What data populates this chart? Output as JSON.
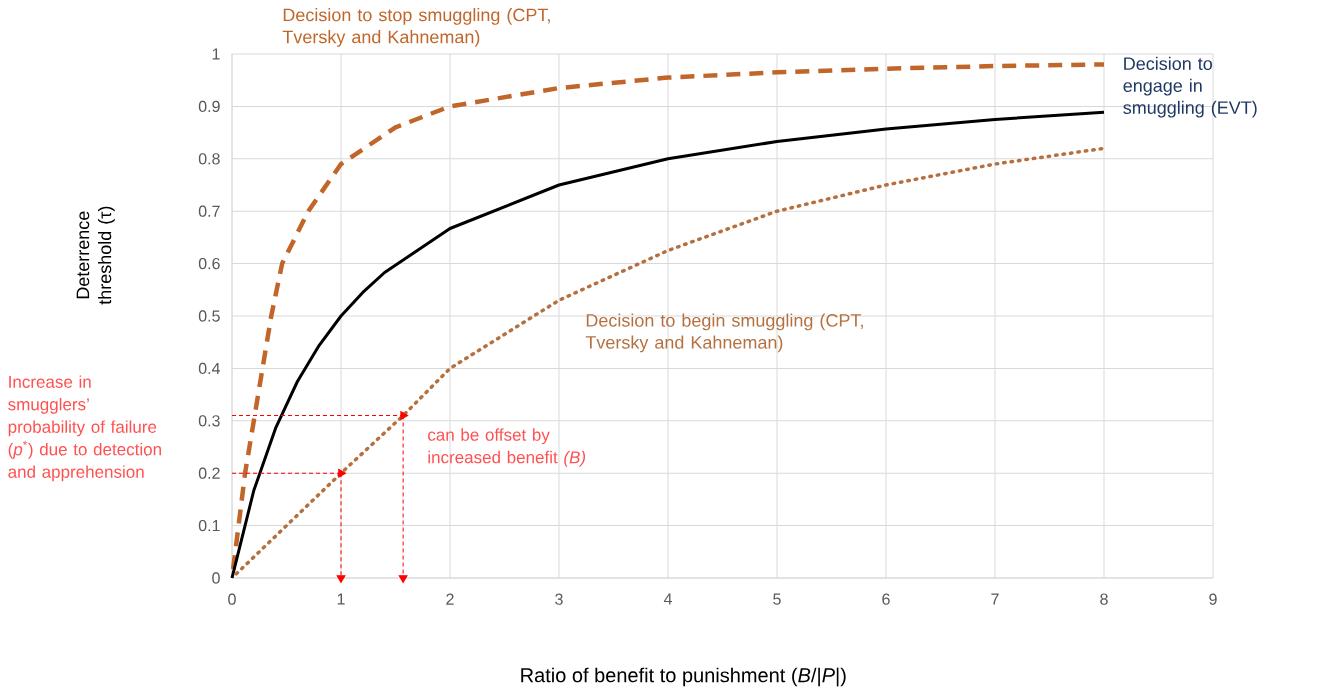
{
  "chart_data": {
    "type": "line",
    "xlabel": "Ratio of benefit to punishment (*B*/|*P*|)",
    "ylabel": "Deterrence threshold (τ)",
    "xlim": [
      0,
      9
    ],
    "xticks": [
      0,
      1,
      2,
      3,
      4,
      5,
      6,
      7,
      8,
      9
    ],
    "ylim": [
      0,
      1
    ],
    "yticks": [
      0,
      0.1,
      0.2,
      0.3,
      0.4,
      0.5,
      0.6,
      0.7,
      0.8,
      0.9,
      1
    ],
    "grid": true,
    "marker": "none",
    "annotations": [
      "Increase in smugglers’ probability of failure (*p*$^{*}$) due to detection and apprehension",
      "can be offset by increased benefit *(B)*"
    ],
    "series": [
      {
        "name": "Decision to stop smuggling (CPT, Tversky and Kahneman)",
        "color": "#c0662a",
        "line_style": "dashed",
        "x": [
          0,
          0.12,
          0.2,
          0.36,
          0.46,
          0.7,
          1,
          1.5,
          2,
          3,
          4,
          5,
          6,
          7,
          8
        ],
        "values": [
          0,
          0.2,
          0.3,
          0.5,
          0.6,
          0.7,
          0.79,
          0.86,
          0.9,
          0.935,
          0.955,
          0.965,
          0.972,
          0.977,
          0.98
        ]
      },
      {
        "name": "Decision to engage in smuggling (EVT)",
        "color": "#000000",
        "line_style": "solid",
        "x": [
          0,
          0.2,
          0.4,
          0.6,
          0.8,
          1,
          1.2,
          1.4,
          2,
          3,
          4,
          5,
          6,
          7,
          8
        ],
        "values": [
          0,
          0.167,
          0.286,
          0.375,
          0.444,
          0.5,
          0.545,
          0.583,
          0.667,
          0.75,
          0.8,
          0.833,
          0.857,
          0.875,
          0.889
        ]
      },
      {
        "name": "Decision to begin smuggling (CPT, Tversky and Kahneman)",
        "color": "#b5703f",
        "line_style": "dotted",
        "x": [
          0,
          0.5,
          1,
          1.57,
          2,
          3,
          4,
          5,
          6,
          7,
          8
        ],
        "values": [
          0,
          0.1,
          0.2,
          0.31,
          0.4,
          0.53,
          0.625,
          0.7,
          0.75,
          0.79,
          0.82
        ]
      },
      {
        "color": "#ff0000",
        "line_style": "dashed",
        "marker": "triangle",
        "x": [
          0,
          1
        ],
        "values": [
          0.2,
          0.2
        ]
      },
      {
        "color": "#ff0000",
        "line_style": "dashed",
        "marker": "triangle",
        "x": [
          1,
          1
        ],
        "values": [
          0.2,
          0
        ]
      },
      {
        "color": "#ff0000",
        "line_style": "dashed",
        "marker": "triangle",
        "x": [
          0,
          1.57
        ],
        "values": [
          0.31,
          0.31
        ]
      },
      {
        "color": "#ff0000",
        "line_style": "dashed",
        "marker": "triangle",
        "x": [
          1.57,
          1.57
        ],
        "values": [
          0.31,
          0
        ]
      }
    ]
  }
}
